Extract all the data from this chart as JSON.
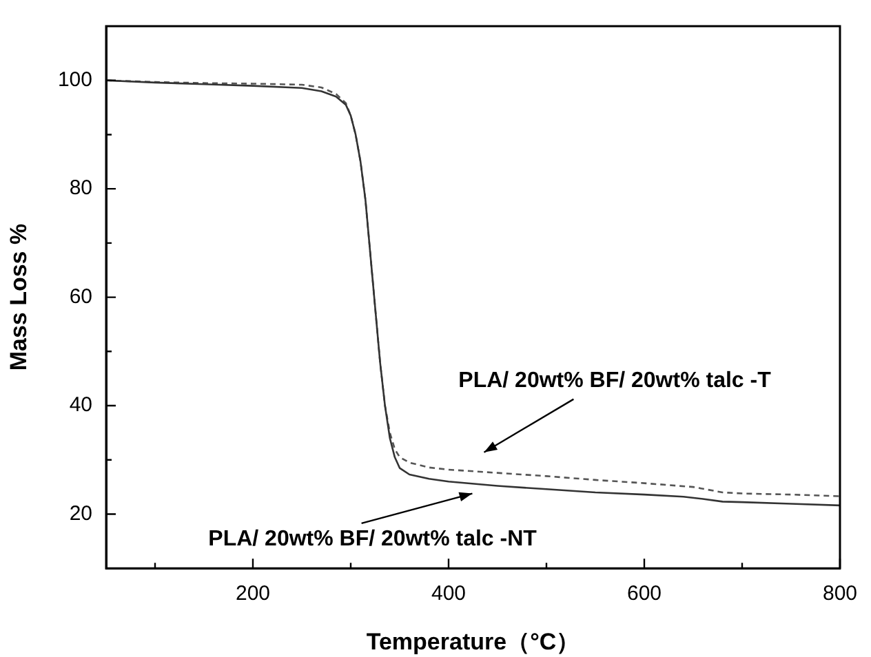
{
  "chart_data": {
    "type": "line",
    "xlabel": "Temperature（°C）",
    "ylabel": "Mass Loss %",
    "xlim": [
      50,
      800
    ],
    "xticks": [
      {
        "value": 100,
        "label": null
      },
      200,
      {
        "value": 300,
        "label": null
      },
      400,
      {
        "value": 500,
        "label": null
      },
      600,
      {
        "value": 700,
        "label": null
      },
      800
    ],
    "ylim": [
      10,
      110
    ],
    "yticks": [
      20,
      {
        "value": 30,
        "label": null
      },
      40,
      {
        "value": 50,
        "label": null
      },
      60,
      {
        "value": 70,
        "label": null
      },
      80,
      {
        "value": 90,
        "label": null
      },
      100
    ],
    "grid": false,
    "legend": false,
    "marker": "none",
    "series": [
      {
        "color": "#333333",
        "line_style": "solid",
        "x": [
          50,
          100,
          150,
          200,
          250,
          270,
          285,
          295,
          300,
          305,
          310,
          315,
          320,
          325,
          330,
          335,
          340,
          345,
          350,
          360,
          380,
          400,
          450,
          500,
          550,
          600,
          640,
          660,
          680,
          700,
          750,
          800
        ],
        "values": [
          100,
          99.6,
          99.3,
          99,
          98.6,
          98,
          97,
          95.5,
          93.5,
          90,
          85,
          78,
          68,
          58,
          48,
          40,
          34,
          30.5,
          28.5,
          27.3,
          26.5,
          26,
          25.2,
          24.6,
          24,
          23.6,
          23.2,
          22.8,
          22.3,
          22.2,
          21.9,
          21.6
        ]
      },
      {
        "color": "#555555",
        "line_style": "dashed",
        "x": [
          50,
          100,
          150,
          200,
          250,
          270,
          285,
          295,
          300,
          305,
          310,
          315,
          320,
          325,
          330,
          335,
          340,
          345,
          350,
          360,
          380,
          400,
          450,
          500,
          550,
          600,
          650,
          680,
          700,
          750,
          800
        ],
        "values": [
          100,
          99.7,
          99.5,
          99.4,
          99.2,
          98.7,
          97.5,
          95.8,
          93.5,
          90,
          85,
          78,
          68,
          58,
          48,
          40,
          35,
          32,
          30.5,
          29.5,
          28.6,
          28.2,
          27.6,
          27,
          26.3,
          25.7,
          25,
          24,
          23.8,
          23.6,
          23.3
        ]
      }
    ],
    "annotations": [
      "PLA/ 20wt% BF/ 20wt% talc -T",
      "PLA/ 20wt% BF/ 20wt% talc -NT"
    ]
  }
}
